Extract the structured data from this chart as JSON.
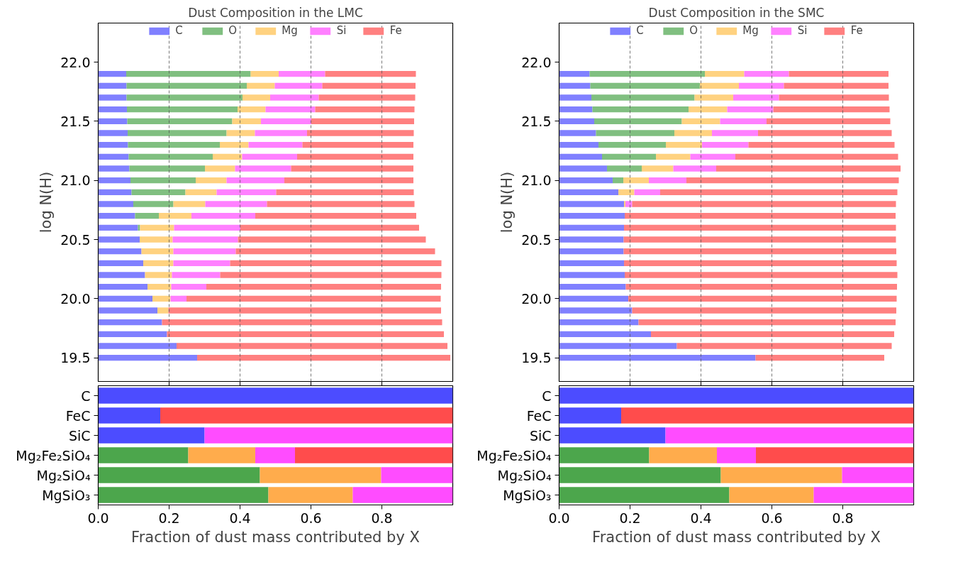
{
  "chart_data": [
    {
      "type": "bar",
      "orientation": "horizontal",
      "stacked": true,
      "title": "Dust Composition in the LMC",
      "ylabel": "log N(H)",
      "legend": "top",
      "grid": "x",
      "tick_labels": "y",
      "x": [
        21.9,
        21.8,
        21.7,
        21.6,
        21.5,
        21.4,
        21.3,
        21.2,
        21.1,
        21.0,
        20.9,
        20.8,
        20.7,
        20.6,
        20.5,
        20.4,
        20.3,
        20.2,
        20.1,
        20.0,
        19.9,
        19.8,
        19.7,
        19.6,
        19.5
      ],
      "xlim": [
        0,
        1
      ],
      "xticks": [
        0.2,
        0.4,
        0.6,
        0.8
      ],
      "ylim": [
        19.3,
        22.33
      ],
      "yticks": [
        19.5,
        {
          "value": 20,
          "label": "20.0"
        },
        20.5,
        {
          "value": 21,
          "label": "21.0"
        },
        21.5,
        {
          "value": 22,
          "label": "22.0"
        }
      ],
      "series": [
        {
          "name": "C",
          "color": "#8080ff",
          "values": [
            0.079,
            0.08,
            0.08,
            0.081,
            0.082,
            0.083,
            0.084,
            0.086,
            0.088,
            0.091,
            0.094,
            0.099,
            0.104,
            0.112,
            0.117,
            0.122,
            0.127,
            0.132,
            0.139,
            0.153,
            0.167,
            0.18,
            0.194,
            0.221,
            0.279
          ]
        },
        {
          "name": "O",
          "color": "#80bf80",
          "values": [
            0.351,
            0.339,
            0.327,
            0.312,
            0.296,
            0.279,
            0.259,
            0.237,
            0.213,
            0.184,
            0.152,
            0.113,
            0.067,
            0.006,
            0,
            0,
            0,
            0,
            0,
            0,
            0,
            0,
            0,
            0,
            0
          ]
        },
        {
          "name": "Mg",
          "color": "#ffd280",
          "values": [
            0.079,
            0.079,
            0.078,
            0.079,
            0.081,
            0.08,
            0.081,
            0.083,
            0.085,
            0.087,
            0.088,
            0.09,
            0.092,
            0.096,
            0.093,
            0.09,
            0.085,
            0.076,
            0.067,
            0.051,
            0.031,
            0,
            0,
            0,
            0
          ]
        },
        {
          "name": "Si",
          "color": "#ff80ff",
          "values": [
            0.131,
            0.134,
            0.137,
            0.14,
            0.142,
            0.147,
            0.152,
            0.155,
            0.158,
            0.163,
            0.168,
            0.174,
            0.18,
            0.187,
            0.184,
            0.176,
            0.16,
            0.136,
            0.099,
            0.045,
            0,
            0,
            0,
            0,
            0
          ]
        },
        {
          "name": "Fe",
          "color": "#ff8080",
          "values": [
            0.256,
            0.263,
            0.272,
            0.28,
            0.29,
            0.301,
            0.313,
            0.328,
            0.345,
            0.364,
            0.388,
            0.416,
            0.454,
            0.504,
            0.53,
            0.562,
            0.596,
            0.624,
            0.662,
            0.717,
            0.769,
            0.79,
            0.781,
            0.764,
            0.714
          ]
        }
      ]
    },
    {
      "type": "bar",
      "orientation": "horizontal",
      "stacked": true,
      "title": "Dust Composition in the SMC",
      "ylabel": "log N(H)",
      "legend": "top",
      "grid": "x",
      "tick_labels": "y",
      "x": [
        21.9,
        21.8,
        21.7,
        21.6,
        21.5,
        21.4,
        21.3,
        21.2,
        21.1,
        21.0,
        20.9,
        20.8,
        20.7,
        20.6,
        20.5,
        20.4,
        20.3,
        20.2,
        20.1,
        20.0,
        19.9,
        19.8,
        19.7,
        19.6,
        19.5
      ],
      "xlim": [
        0,
        1
      ],
      "xticks": [
        0.2,
        0.4,
        0.6,
        0.8
      ],
      "ylim": [
        19.3,
        22.33
      ],
      "yticks": [
        19.5,
        {
          "value": 20,
          "label": "20.0"
        },
        20.5,
        {
          "value": 21,
          "label": "21.0"
        },
        21.5,
        {
          "value": 22,
          "label": "22.0"
        }
      ],
      "series": [
        {
          "name": "C",
          "color": "#8080ff",
          "values": [
            0.086,
            0.088,
            0.091,
            0.094,
            0.099,
            0.104,
            0.111,
            0.121,
            0.135,
            0.151,
            0.167,
            0.183,
            0.185,
            0.183,
            0.182,
            0.182,
            0.183,
            0.185,
            0.188,
            0.195,
            0.206,
            0.224,
            0.259,
            0.332,
            0.554
          ]
        },
        {
          "name": "O",
          "color": "#80bf80",
          "values": [
            0.325,
            0.309,
            0.291,
            0.271,
            0.247,
            0.221,
            0.19,
            0.152,
            0.098,
            0.03,
            0,
            0,
            0,
            0,
            0,
            0,
            0,
            0,
            0,
            0,
            0,
            0,
            0,
            0,
            0
          ]
        },
        {
          "name": "Mg",
          "color": "#ffd280",
          "values": [
            0.111,
            0.11,
            0.109,
            0.109,
            0.108,
            0.106,
            0.102,
            0.097,
            0.089,
            0.072,
            0.045,
            0.004,
            0,
            0,
            0,
            0,
            0,
            0,
            0,
            0,
            0,
            0,
            0,
            0,
            0
          ]
        },
        {
          "name": "Si",
          "color": "#ff80ff",
          "values": [
            0.126,
            0.127,
            0.129,
            0.13,
            0.131,
            0.13,
            0.131,
            0.127,
            0.121,
            0.106,
            0.073,
            0.019,
            0,
            0,
            0,
            0,
            0,
            0,
            0,
            0,
            0,
            0,
            0,
            0,
            0
          ]
        },
        {
          "name": "Fe",
          "color": "#ff8080",
          "values": [
            0.281,
            0.295,
            0.31,
            0.328,
            0.349,
            0.377,
            0.412,
            0.459,
            0.52,
            0.599,
            0.669,
            0.744,
            0.764,
            0.767,
            0.768,
            0.769,
            0.769,
            0.769,
            0.765,
            0.757,
            0.745,
            0.725,
            0.686,
            0.606,
            0.363
          ]
        }
      ]
    },
    {
      "type": "bar",
      "orientation": "horizontal",
      "stacked": true,
      "xlabel": "Fraction of dust mass contributed by X",
      "categories": [
        "C",
        "FeC",
        "SiC",
        "Mg₂Fe₂SiO₄",
        "Mg₂SiO₄",
        "MgSiO₃"
      ],
      "xlim": [
        0,
        1
      ],
      "xticks": [
        {
          "value": 0,
          "label": "0.0"
        },
        0.2,
        0.4,
        0.6,
        0.8
      ],
      "series": [
        {
          "color": "#4c4cff",
          "values": [
            1.0,
            0.175,
            0.3,
            0,
            0,
            0
          ]
        },
        {
          "color": "#4ca64c",
          "values": [
            0,
            0,
            0,
            0.254,
            0.456,
            0.48
          ]
        },
        {
          "color": "#ffac4c",
          "values": [
            0,
            0,
            0,
            0.189,
            0.342,
            0.238
          ]
        },
        {
          "color": "#ff4cff",
          "values": [
            0,
            0,
            0.7,
            0.112,
            0.202,
            0.282
          ]
        },
        {
          "color": "#ff4c4c",
          "values": [
            0,
            0.825,
            0,
            0.445,
            0,
            0
          ]
        }
      ]
    },
    {
      "type": "bar",
      "orientation": "horizontal",
      "stacked": true,
      "xlabel": "Fraction of dust mass contributed by X",
      "categories": [
        "C",
        "FeC",
        "SiC",
        "Mg₂Fe₂SiO₄",
        "Mg₂SiO₄",
        "MgSiO₃"
      ],
      "xlim": [
        0,
        1
      ],
      "xticks": [
        {
          "value": 0,
          "label": "0.0"
        },
        0.2,
        0.4,
        0.6,
        0.8
      ],
      "series": [
        {
          "color": "#4c4cff",
          "values": [
            1.0,
            0.175,
            0.3,
            0,
            0,
            0
          ]
        },
        {
          "color": "#4ca64c",
          "values": [
            0,
            0,
            0,
            0.254,
            0.456,
            0.48
          ]
        },
        {
          "color": "#ffac4c",
          "values": [
            0,
            0,
            0,
            0.191,
            0.342,
            0.238
          ]
        },
        {
          "color": "#ff4cff",
          "values": [
            0,
            0,
            0.7,
            0.11,
            0.202,
            0.282
          ]
        },
        {
          "color": "#ff4c4c",
          "values": [
            0,
            0.825,
            0,
            0.445,
            0,
            0
          ]
        }
      ]
    }
  ]
}
